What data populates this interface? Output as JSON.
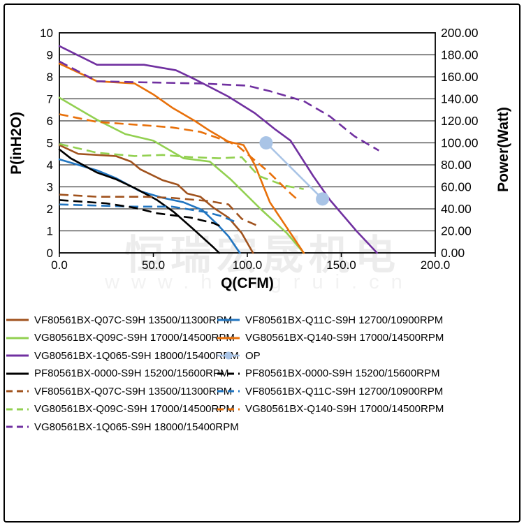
{
  "page": {
    "watermark_line1": "恒瑞宏晟机电",
    "watermark_line2": "www.hengrui.cn"
  },
  "chart_data": {
    "type": "line",
    "title": "",
    "xlabel": "Q(CFM)",
    "ylabel_left": "P(inH2O)",
    "ylabel_right": "Power(Watt)",
    "xlim": [
      0,
      200
    ],
    "ylim_left": [
      0,
      10
    ],
    "ylim_right": [
      0,
      200
    ],
    "grid": "horizontal-on",
    "legend_position": "bottom",
    "x_tick_values": [
      0,
      50,
      100,
      150,
      200
    ],
    "x_tick_labels": [
      "0.0",
      "50.0",
      "100.0",
      "150.0",
      "200.0"
    ],
    "y_left_tick_values": [
      0,
      1,
      2,
      3,
      4,
      5,
      6,
      7,
      8,
      9,
      10
    ],
    "y_left_tick_labels": [
      "0",
      "1",
      "2",
      "3",
      "4",
      "5",
      "6",
      "7",
      "8",
      "9",
      "10"
    ],
    "y_right_tick_values": [
      0,
      20,
      40,
      60,
      80,
      100,
      120,
      140,
      160,
      180,
      200
    ],
    "y_right_tick_labels": [
      "0.00",
      "20.00",
      "40.00",
      "60.00",
      "80.00",
      "100.00",
      "120.00",
      "140.00",
      "160.00",
      "180.00",
      "200.00"
    ],
    "series": [
      {
        "name": "VF80561BX-Q07C-S9H 13500/11300RPM",
        "role": "static-pressure",
        "color": "#A0521D",
        "style": "solid",
        "axis": "left",
        "markers": false,
        "points": [
          [
            0,
            4.9
          ],
          [
            10,
            4.5
          ],
          [
            30,
            4.4
          ],
          [
            38,
            4.15
          ],
          [
            43,
            3.8
          ],
          [
            55,
            3.3
          ],
          [
            63,
            3.1
          ],
          [
            68,
            2.7
          ],
          [
            75,
            2.55
          ],
          [
            82,
            2.05
          ],
          [
            90,
            1.6
          ],
          [
            97,
            0.9
          ],
          [
            103,
            0
          ]
        ]
      },
      {
        "name": "VF80561BX-Q11C-S9H 12700/10900RPM",
        "role": "static-pressure",
        "color": "#2175C0",
        "style": "solid",
        "axis": "left",
        "markers": false,
        "points": [
          [
            0,
            4.25
          ],
          [
            10,
            4.0
          ],
          [
            20,
            3.75
          ],
          [
            30,
            3.4
          ],
          [
            43,
            2.8
          ],
          [
            55,
            2.5
          ],
          [
            66,
            2.3
          ],
          [
            76,
            1.95
          ],
          [
            84,
            1.3
          ],
          [
            90,
            0.75
          ],
          [
            96,
            0
          ]
        ]
      },
      {
        "name": "VG80561BX-Q09C-S9H 17000/14500RPM",
        "role": "static-pressure",
        "color": "#92D050",
        "style": "solid",
        "axis": "left",
        "markers": false,
        "points": [
          [
            0,
            7.05
          ],
          [
            20,
            6.05
          ],
          [
            35,
            5.4
          ],
          [
            50,
            5.1
          ],
          [
            66,
            4.3
          ],
          [
            80,
            4.15
          ],
          [
            91,
            3.35
          ],
          [
            107,
            2.0
          ],
          [
            121,
            0.9
          ],
          [
            130,
            0
          ]
        ]
      },
      {
        "name": "VG80561BX-Q140-S9H 17000/14500RPM",
        "role": "static-pressure",
        "color": "#E8700A",
        "style": "solid",
        "axis": "left",
        "markers": false,
        "points": [
          [
            0,
            8.6
          ],
          [
            20,
            7.8
          ],
          [
            40,
            7.7
          ],
          [
            50,
            7.2
          ],
          [
            60,
            6.6
          ],
          [
            72,
            6.0
          ],
          [
            80,
            5.55
          ],
          [
            90,
            5.05
          ],
          [
            98,
            4.9
          ],
          [
            104,
            4.0
          ],
          [
            112,
            2.3
          ],
          [
            130,
            0
          ]
        ]
      },
      {
        "name": "PF80561BX-0000-S9H 15200/15600RPM",
        "role": "static-pressure",
        "color": "#000000",
        "style": "solid",
        "axis": "left",
        "markers": false,
        "points": [
          [
            0,
            4.7
          ],
          [
            6,
            4.3
          ],
          [
            20,
            3.65
          ],
          [
            30,
            3.35
          ],
          [
            40,
            2.95
          ],
          [
            52,
            2.4
          ],
          [
            61,
            1.85
          ],
          [
            71,
            1.1
          ],
          [
            82,
            0.25
          ],
          [
            85,
            0
          ]
        ]
      },
      {
        "name": "OP",
        "role": "operating-points",
        "color": "#A9C4E6",
        "style": "solid",
        "axis": "right",
        "markers": true,
        "points": [
          [
            110,
            100
          ],
          [
            140,
            49
          ]
        ]
      },
      {
        "name": "VG80561BX-1Q065-S9H 18000/15400RPM",
        "role": "static-pressure",
        "color": "#7030A0",
        "style": "solid",
        "axis": "left",
        "markers": false,
        "points": [
          [
            0,
            9.4
          ],
          [
            20,
            8.55
          ],
          [
            45,
            8.55
          ],
          [
            62,
            8.3
          ],
          [
            73,
            7.85
          ],
          [
            90,
            7.1
          ],
          [
            104,
            6.35
          ],
          [
            115,
            5.6
          ],
          [
            123,
            5.1
          ],
          [
            135,
            3.5
          ],
          [
            144,
            2.4
          ],
          [
            158,
            1.0
          ],
          [
            169,
            0
          ]
        ]
      },
      {
        "name": "VF80561BX-Q07C-S9H 13500/11300RPM",
        "role": "power",
        "color": "#A0521D",
        "style": "dashed",
        "axis": "right",
        "markers": false,
        "points": [
          [
            0,
            53
          ],
          [
            20,
            51
          ],
          [
            45,
            51
          ],
          [
            60,
            50
          ],
          [
            80,
            47
          ],
          [
            90,
            44
          ],
          [
            97,
            31
          ],
          [
            105,
            25
          ]
        ]
      },
      {
        "name": "VF80561BX-Q11C-S9H 12700/10900RPM",
        "role": "power",
        "color": "#2175C0",
        "style": "dashed",
        "axis": "right",
        "markers": false,
        "points": [
          [
            0,
            44
          ],
          [
            20,
            43
          ],
          [
            40,
            42
          ],
          [
            60,
            42
          ],
          [
            78,
            37
          ],
          [
            85,
            34
          ],
          [
            94,
            28
          ]
        ]
      },
      {
        "name": "PF80561BX-0000-S9H 15200/15600RPM",
        "role": "power",
        "color": "#000000",
        "style": "dashed",
        "axis": "right",
        "markers": false,
        "points": [
          [
            0,
            48
          ],
          [
            25,
            45
          ],
          [
            40,
            41
          ],
          [
            52,
            36
          ],
          [
            70,
            32
          ],
          [
            82,
            27
          ],
          [
            86,
            24
          ]
        ]
      },
      {
        "name": "VG80561BX-Q09C-S9H 17000/14500RPM",
        "role": "power",
        "color": "#92D050",
        "style": "dashed",
        "axis": "right",
        "markers": false,
        "points": [
          [
            0,
            99
          ],
          [
            20,
            91
          ],
          [
            40,
            88
          ],
          [
            55,
            89
          ],
          [
            70,
            87
          ],
          [
            85,
            86
          ],
          [
            97,
            87
          ],
          [
            106,
            70
          ],
          [
            120,
            61
          ],
          [
            130,
            58
          ]
        ]
      },
      {
        "name": "VG80561BX-Q140-S9H 17000/14500RPM",
        "role": "power",
        "color": "#E8700A",
        "style": "dashed",
        "axis": "right",
        "markers": false,
        "points": [
          [
            0,
            126
          ],
          [
            20,
            119
          ],
          [
            45,
            116
          ],
          [
            60,
            114
          ],
          [
            75,
            110
          ],
          [
            90,
            101
          ],
          [
            95,
            97
          ],
          [
            111,
            74
          ],
          [
            123,
            54
          ],
          [
            127,
            48
          ]
        ]
      },
      {
        "name": "VG80561BX-1Q065-S9H 18000/15400RPM",
        "role": "power",
        "color": "#7030A0",
        "style": "dashed",
        "axis": "right",
        "markers": false,
        "points": [
          [
            0,
            174
          ],
          [
            20,
            156
          ],
          [
            45,
            155
          ],
          [
            75,
            154
          ],
          [
            100,
            152
          ],
          [
            112,
            147
          ],
          [
            130,
            138
          ],
          [
            144,
            124
          ],
          [
            157,
            106
          ],
          [
            170,
            93
          ]
        ]
      }
    ]
  },
  "legend": {
    "left": [
      {
        "label": "VF80561BX-Q07C-S9H 13500/11300RPM",
        "color": "#A0521D",
        "style": "solid"
      },
      {
        "label": "VG80561BX-Q09C-S9H 17000/14500RPM",
        "color": "#92D050",
        "style": "solid"
      },
      {
        "label": "VG80561BX-1Q065-S9H 18000/15400RPM",
        "color": "#7030A0",
        "style": "solid"
      },
      {
        "label": "PF80561BX-0000-S9H 15200/15600RPM",
        "color": "#000000",
        "style": "solid"
      },
      {
        "label": "VF80561BX-Q07C-S9H 13500/11300RPM",
        "color": "#A0521D",
        "style": "dashed"
      },
      {
        "label": "VG80561BX-Q09C-S9H 17000/14500RPM",
        "color": "#92D050",
        "style": "dashed"
      },
      {
        "label": "VG80561BX-1Q065-S9H 18000/15400RPM",
        "color": "#7030A0",
        "style": "dashed"
      }
    ],
    "right": [
      {
        "label": "VF80561BX-Q11C-S9H 12700/10900RPM",
        "color": "#2175C0",
        "style": "solid"
      },
      {
        "label": "VG80561BX-Q140-S9H 17000/14500RPM",
        "color": "#E8700A",
        "style": "solid"
      },
      {
        "label": "OP",
        "color": "#A9C4E6",
        "style": "op"
      },
      {
        "label": "PF80561BX-0000-S9H 15200/15600RPM",
        "color": "#000000",
        "style": "dashed"
      },
      {
        "label": "VF80561BX-Q11C-S9H 12700/10900RPM",
        "color": "#2175C0",
        "style": "dashed"
      },
      {
        "label": "VG80561BX-Q140-S9H 17000/14500RPM",
        "color": "#E8700A",
        "style": "dashed"
      }
    ]
  }
}
